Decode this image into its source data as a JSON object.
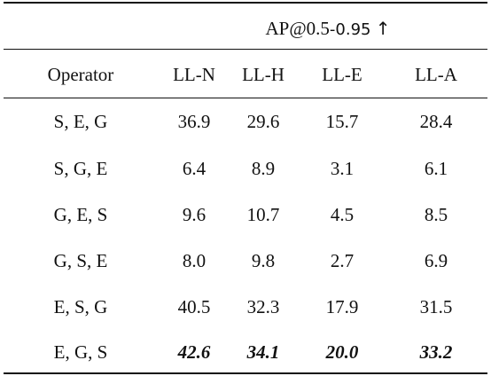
{
  "table": {
    "metric_header": {
      "label_main": "AP@0.5",
      "label_sub": "-0.95",
      "arrow": "↑"
    },
    "columns": [
      "Operator",
      "LL-N",
      "LL-H",
      "LL-E",
      "LL-A"
    ],
    "rows": [
      {
        "operator": "S, E, G",
        "values": [
          "36.9",
          "29.6",
          "15.7",
          "28.4"
        ],
        "best": false
      },
      {
        "operator": "S, G, E",
        "values": [
          "6.4",
          "8.9",
          "3.1",
          "6.1"
        ],
        "best": false
      },
      {
        "operator": "G, E, S",
        "values": [
          "9.6",
          "10.7",
          "4.5",
          "8.5"
        ],
        "best": false
      },
      {
        "operator": "G, S, E",
        "values": [
          "8.0",
          "9.8",
          "2.7",
          "6.9"
        ],
        "best": false
      },
      {
        "operator": "E, S, G",
        "values": [
          "40.5",
          "32.3",
          "17.9",
          "31.5"
        ],
        "best": false
      },
      {
        "operator": "E, G, S",
        "values": [
          "42.6",
          "34.1",
          "20.0",
          "33.2"
        ],
        "best": true
      }
    ]
  }
}
